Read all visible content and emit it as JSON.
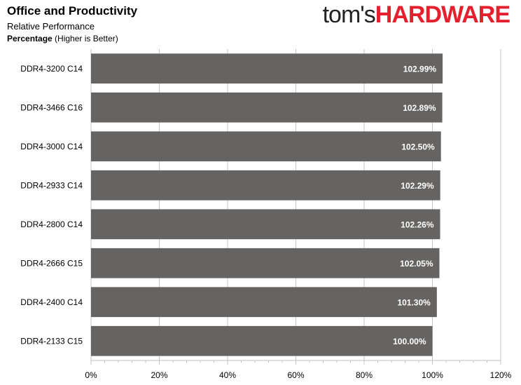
{
  "brand": {
    "part1": "tom's",
    "part2": "HARDWARE",
    "color1": "#222222",
    "color2": "#e4202e"
  },
  "chart_data": {
    "type": "bar",
    "orientation": "horizontal",
    "title": "Office and Productivity",
    "subtitle": "Relative Performance",
    "unit_label_bold": "Percentage",
    "unit_label_rest": " (Higher is Better)",
    "categories": [
      "DDR4-3200 C14",
      "DDR4-3466 C16",
      "DDR4-3000 C14",
      "DDR4-2933 C14",
      "DDR4-2800 C14",
      "DDR4-2666 C15",
      "DDR4-2400 C14",
      "DDR4-2133 C15"
    ],
    "values": [
      102.99,
      102.89,
      102.5,
      102.29,
      102.26,
      102.05,
      101.3,
      100.0
    ],
    "data_labels": [
      "102.99%",
      "102.89%",
      "102.50%",
      "102.29%",
      "102.26%",
      "102.05%",
      "101.30%",
      "100.00%"
    ],
    "xlim": [
      0,
      120
    ],
    "xticks": [
      0,
      20,
      40,
      60,
      80,
      100,
      120
    ],
    "xtick_labels": [
      "0%",
      "20%",
      "40%",
      "60%",
      "80%",
      "100%",
      "120%"
    ],
    "grid": true,
    "bar_color": "#666462",
    "label_color": "#ffffff"
  }
}
